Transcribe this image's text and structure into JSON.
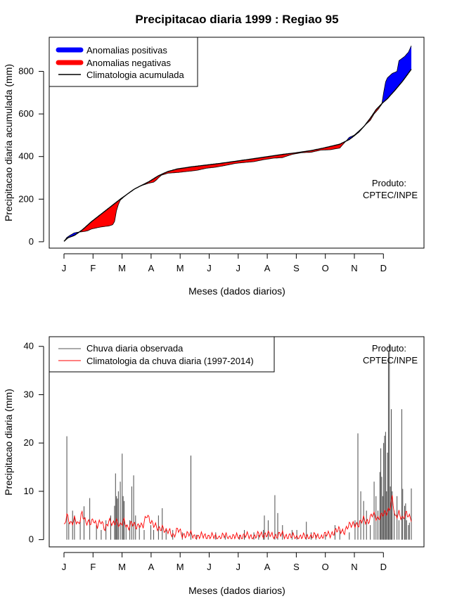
{
  "page_title": "Precipitacao diaria 1999 : Regiao 95",
  "chart_data": [
    {
      "type": "area",
      "name": "accumulated",
      "ylabel": "Precipitacao diaria acumulada (mm)",
      "xlabel": "Meses (dados diarios)",
      "months": [
        "J",
        "F",
        "M",
        "A",
        "M",
        "J",
        "J",
        "A",
        "S",
        "O",
        "N",
        "D"
      ],
      "yticks": [
        0,
        200,
        400,
        600,
        800
      ],
      "ylim": [
        -30,
        960
      ],
      "xlim": [
        1,
        365
      ],
      "legend": [
        {
          "label": "Anomalias positivas",
          "color": "#0000ff"
        },
        {
          "label": "Anomalias negativas",
          "color": "#ff0000"
        },
        {
          "label": "Climatologia acumulada",
          "color": "#000000"
        }
      ],
      "annotation": [
        "Produto:",
        "CPTEC/INPE"
      ],
      "climatology_points": [
        [
          1,
          2
        ],
        [
          5,
          18
        ],
        [
          12,
          30
        ],
        [
          20,
          55
        ],
        [
          30,
          95
        ],
        [
          40,
          130
        ],
        [
          50,
          165
        ],
        [
          60,
          200
        ],
        [
          75,
          248
        ],
        [
          90,
          282
        ],
        [
          100,
          310
        ],
        [
          110,
          330
        ],
        [
          120,
          342
        ],
        [
          135,
          352
        ],
        [
          150,
          360
        ],
        [
          165,
          368
        ],
        [
          181,
          378
        ],
        [
          200,
          390
        ],
        [
          212,
          398
        ],
        [
          230,
          410
        ],
        [
          245,
          418
        ],
        [
          260,
          428
        ],
        [
          273,
          440
        ],
        [
          290,
          458
        ],
        [
          300,
          480
        ],
        [
          305,
          497
        ],
        [
          310,
          515
        ],
        [
          316,
          545
        ],
        [
          322,
          580
        ],
        [
          328,
          620
        ],
        [
          334,
          648
        ],
        [
          340,
          672
        ],
        [
          348,
          712
        ],
        [
          356,
          755
        ],
        [
          365,
          810
        ]
      ],
      "observed_points": [
        [
          1,
          2
        ],
        [
          4,
          20
        ],
        [
          8,
          32
        ],
        [
          12,
          42
        ],
        [
          16,
          45
        ],
        [
          22,
          48
        ],
        [
          26,
          52
        ],
        [
          30,
          60
        ],
        [
          38,
          68
        ],
        [
          44,
          72
        ],
        [
          48,
          74
        ],
        [
          52,
          80
        ],
        [
          54,
          95
        ],
        [
          56,
          145
        ],
        [
          58,
          175
        ],
        [
          60,
          195
        ],
        [
          65,
          215
        ],
        [
          72,
          240
        ],
        [
          80,
          260
        ],
        [
          90,
          275
        ],
        [
          95,
          280
        ],
        [
          98,
          290
        ],
        [
          100,
          300
        ],
        [
          103,
          312
        ],
        [
          110,
          322
        ],
        [
          120,
          325
        ],
        [
          130,
          330
        ],
        [
          140,
          335
        ],
        [
          150,
          345
        ],
        [
          160,
          350
        ],
        [
          170,
          358
        ],
        [
          181,
          368
        ],
        [
          190,
          372
        ],
        [
          200,
          376
        ],
        [
          210,
          385
        ],
        [
          220,
          392
        ],
        [
          230,
          395
        ],
        [
          240,
          410
        ],
        [
          250,
          418
        ],
        [
          260,
          420
        ],
        [
          270,
          430
        ],
        [
          280,
          432
        ],
        [
          290,
          440
        ],
        [
          300,
          490
        ],
        [
          305,
          500
        ],
        [
          310,
          520
        ],
        [
          316,
          545
        ],
        [
          322,
          570
        ],
        [
          326,
          600
        ],
        [
          330,
          620
        ],
        [
          334,
          645
        ],
        [
          336,
          700
        ],
        [
          338,
          750
        ],
        [
          340,
          770
        ],
        [
          345,
          790
        ],
        [
          350,
          800
        ],
        [
          352,
          850
        ],
        [
          358,
          870
        ],
        [
          362,
          890
        ],
        [
          365,
          920
        ]
      ]
    },
    {
      "type": "bar",
      "name": "daily",
      "ylabel": "Precipitacao diaria (mm)",
      "xlabel": "Meses (dados diarios)",
      "months": [
        "J",
        "F",
        "M",
        "A",
        "M",
        "J",
        "J",
        "A",
        "S",
        "O",
        "N",
        "D"
      ],
      "yticks": [
        0,
        10,
        20,
        30,
        40
      ],
      "ylim": [
        -1.5,
        42
      ],
      "xlim": [
        1,
        365
      ],
      "legend": [
        {
          "label": "Chuva diaria observada",
          "color": "#555555"
        },
        {
          "label": "Climatologia da chuva diaria (1997-2014)",
          "color": "#ff0000"
        }
      ],
      "annotation": [
        "Produto:",
        "CPTEC/INPE"
      ],
      "spikes": [
        [
          4,
          21.4
        ],
        [
          6,
          3.5
        ],
        [
          10,
          6
        ],
        [
          12,
          5
        ],
        [
          18,
          4
        ],
        [
          22,
          6.9
        ],
        [
          28,
          8.6
        ],
        [
          35,
          3
        ],
        [
          40,
          2
        ],
        [
          45,
          4
        ],
        [
          50,
          5
        ],
        [
          54,
          7
        ],
        [
          55,
          13.7
        ],
        [
          56,
          9
        ],
        [
          57,
          8.5
        ],
        [
          58,
          10
        ],
        [
          60,
          12
        ],
        [
          62,
          17.8
        ],
        [
          63,
          9
        ],
        [
          64,
          8
        ],
        [
          66,
          3
        ],
        [
          70,
          4
        ],
        [
          72,
          11
        ],
        [
          74,
          13.3
        ],
        [
          76,
          5
        ],
        [
          80,
          3
        ],
        [
          85,
          2
        ],
        [
          92,
          3
        ],
        [
          95,
          2
        ],
        [
          100,
          5
        ],
        [
          104,
          6.5
        ],
        [
          108,
          2
        ],
        [
          115,
          2
        ],
        [
          125,
          1.5
        ],
        [
          134,
          17.4
        ],
        [
          140,
          1
        ],
        [
          160,
          1.5
        ],
        [
          170,
          1
        ],
        [
          185,
          1
        ],
        [
          190,
          2
        ],
        [
          200,
          1.5
        ],
        [
          205,
          1
        ],
        [
          210,
          2
        ],
        [
          211,
          5
        ],
        [
          215,
          4
        ],
        [
          222,
          9.2
        ],
        [
          225,
          5.5
        ],
        [
          230,
          3
        ],
        [
          240,
          2
        ],
        [
          245,
          2
        ],
        [
          255,
          3.7
        ],
        [
          260,
          1.5
        ],
        [
          265,
          1
        ],
        [
          275,
          1
        ],
        [
          285,
          3
        ],
        [
          290,
          2
        ],
        [
          300,
          1.5
        ],
        [
          306,
          4
        ],
        [
          309,
          22
        ],
        [
          312,
          10
        ],
        [
          315,
          8
        ],
        [
          318,
          6
        ],
        [
          322,
          3
        ],
        [
          326,
          12
        ],
        [
          328,
          9
        ],
        [
          330,
          6
        ],
        [
          332,
          14
        ],
        [
          333,
          18.9
        ],
        [
          334,
          13
        ],
        [
          335,
          9
        ],
        [
          336,
          20
        ],
        [
          337,
          21.5
        ],
        [
          338,
          22.3
        ],
        [
          339,
          10
        ],
        [
          340,
          18
        ],
        [
          341,
          38.9
        ],
        [
          342,
          40.5
        ],
        [
          343,
          11
        ],
        [
          344,
          27
        ],
        [
          345,
          10
        ],
        [
          347,
          6
        ],
        [
          350,
          9
        ],
        [
          352,
          4
        ],
        [
          355,
          27
        ],
        [
          356,
          10.5
        ],
        [
          358,
          7
        ],
        [
          359,
          7.5
        ],
        [
          360,
          4
        ],
        [
          362,
          3
        ],
        [
          363,
          3.5
        ],
        [
          365,
          10.6
        ]
      ],
      "climatology_points": [
        [
          1,
          2.5
        ],
        [
          4,
          4.8
        ],
        [
          8,
          3.5
        ],
        [
          12,
          4.3
        ],
        [
          16,
          2.8
        ],
        [
          20,
          5.8
        ],
        [
          24,
          3.5
        ],
        [
          28,
          3.2
        ],
        [
          32,
          4.4
        ],
        [
          36,
          2.8
        ],
        [
          40,
          3.6
        ],
        [
          44,
          2.5
        ],
        [
          48,
          3.8
        ],
        [
          52,
          3
        ],
        [
          56,
          4.1
        ],
        [
          60,
          2.8
        ],
        [
          64,
          3.7
        ],
        [
          68,
          2.6
        ],
        [
          72,
          3.4
        ],
        [
          76,
          2.5
        ],
        [
          80,
          3.3
        ],
        [
          84,
          2.8
        ],
        [
          88,
          5
        ],
        [
          92,
          4
        ],
        [
          96,
          2.8
        ],
        [
          100,
          2
        ],
        [
          104,
          2.8
        ],
        [
          108,
          1.5
        ],
        [
          112,
          1.6
        ],
        [
          116,
          1
        ],
        [
          120,
          2
        ],
        [
          125,
          1
        ],
        [
          130,
          1.2
        ],
        [
          140,
          0.6
        ],
        [
          150,
          0.8
        ],
        [
          160,
          0.5
        ],
        [
          170,
          0.7
        ],
        [
          180,
          0.5
        ],
        [
          190,
          0.8
        ],
        [
          200,
          0.6
        ],
        [
          210,
          1.2
        ],
        [
          220,
          0.8
        ],
        [
          230,
          1
        ],
        [
          240,
          0.6
        ],
        [
          250,
          0.5
        ],
        [
          260,
          0.7
        ],
        [
          270,
          0.6
        ],
        [
          280,
          1.2
        ],
        [
          290,
          2
        ],
        [
          295,
          1.8
        ],
        [
          300,
          2.8
        ],
        [
          305,
          3.5
        ],
        [
          310,
          2.8
        ],
        [
          315,
          4.5
        ],
        [
          320,
          3.6
        ],
        [
          325,
          5.3
        ],
        [
          330,
          4.5
        ],
        [
          334,
          4.8
        ],
        [
          338,
          5.6
        ],
        [
          342,
          6.4
        ],
        [
          345,
          8.5
        ],
        [
          348,
          4.3
        ],
        [
          352,
          5.8
        ],
        [
          356,
          4.2
        ],
        [
          360,
          5.3
        ],
        [
          365,
          4.6
        ]
      ]
    }
  ]
}
